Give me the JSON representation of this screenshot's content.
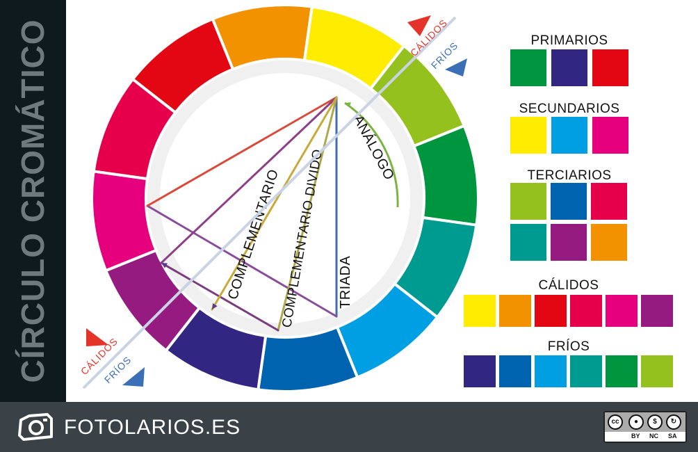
{
  "sidebar": {
    "title": "CÍRCULO CROMÁTICO"
  },
  "wheel": {
    "segments": [
      {
        "name": "amarillo",
        "color": "#ffec00"
      },
      {
        "name": "amarillo-verde",
        "color": "#95c11f"
      },
      {
        "name": "verde",
        "color": "#009640"
      },
      {
        "name": "verde-azul",
        "color": "#009b90"
      },
      {
        "name": "cian",
        "color": "#009fe3"
      },
      {
        "name": "azul",
        "color": "#0063af"
      },
      {
        "name": "azul-violeta",
        "color": "#312783"
      },
      {
        "name": "violeta",
        "color": "#951b81"
      },
      {
        "name": "magenta",
        "color": "#e6007e"
      },
      {
        "name": "rojo-magenta",
        "color": "#e6004b"
      },
      {
        "name": "rojo",
        "color": "#e30613"
      },
      {
        "name": "naranja",
        "color": "#f39200"
      }
    ]
  },
  "divider": {
    "top_warm": "CÁLIDOS",
    "top_cool": "FRÍOS",
    "bottom_warm": "CÁLIDOS",
    "bottom_cool": "FRÍOS",
    "warm_color": "#e6332a",
    "cool_color": "#3b6fb6"
  },
  "harmonies": {
    "analogo": "ANÁLOGO",
    "triada": "TRIADA",
    "complementario_divido": "COMPLEMENTARIO DIVIDO",
    "complementario": "COMPLEMENTARIO"
  },
  "swatches": {
    "primarios": {
      "label": "PRIMARIOS",
      "colors": [
        "#009640",
        "#312783",
        "#e30613"
      ]
    },
    "secundarios": {
      "label": "SECUNDARIOS",
      "colors": [
        "#ffec00",
        "#009fe3",
        "#e6007e"
      ]
    },
    "terciarios": {
      "label": "TERCIARIOS",
      "colors": [
        "#95c11f",
        "#0063af",
        "#e6004b",
        "#009b90",
        "#951b81",
        "#f39200"
      ]
    },
    "calidos": {
      "label": "CÁLIDOS",
      "colors": [
        "#ffec00",
        "#f39200",
        "#e30613",
        "#e6004b",
        "#e6007e",
        "#951b81"
      ]
    },
    "frios": {
      "label": "FRÍOS",
      "colors": [
        "#312783",
        "#0063af",
        "#009fe3",
        "#009b90",
        "#009640",
        "#95c11f"
      ]
    }
  },
  "footer": {
    "brand": "FOTOLARIOS.ES",
    "license_labels": [
      "BY",
      "NC",
      "SA"
    ],
    "license_badge": "cc"
  }
}
